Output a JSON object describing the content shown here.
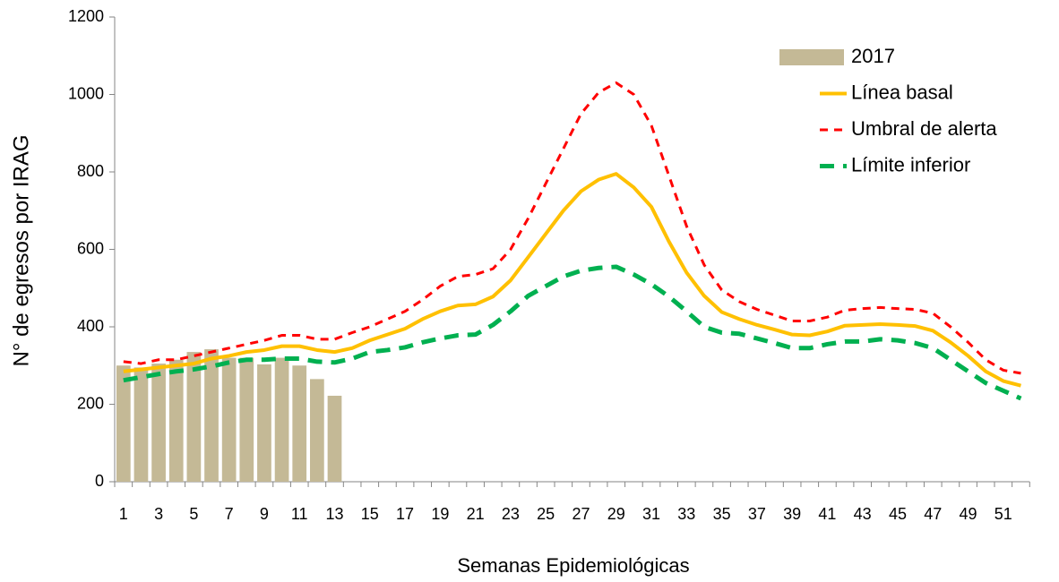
{
  "chart_data": {
    "type": "bar_line",
    "x_label": "Semanas Epidemiológicas",
    "y_label": "N° de egresos por IRAG",
    "categories": [
      "1",
      null,
      "3",
      null,
      "5",
      null,
      "7",
      null,
      "9",
      null,
      "11",
      null,
      "13",
      null,
      "15",
      null,
      "17",
      null,
      "19",
      null,
      "21",
      null,
      "23",
      null,
      "25",
      null,
      "27",
      null,
      "29",
      null,
      "31",
      null,
      "33",
      null,
      "35",
      null,
      "37",
      null,
      "39",
      null,
      "41",
      null,
      "43",
      null,
      "45",
      null,
      "47",
      null,
      "49",
      null,
      "51",
      null
    ],
    "ylim": [
      0,
      1200
    ],
    "yticks": [
      0,
      200,
      400,
      600,
      800,
      1000,
      1200
    ],
    "grid": false,
    "legend": "upper right",
    "series": [
      {
        "name": "2017",
        "kind": "bar",
        "color": "#c4b996",
        "values": [
          300,
          295,
          305,
          315,
          335,
          342,
          320,
          320,
          303,
          320,
          300,
          265,
          222,
          null,
          null,
          null,
          null,
          null,
          null,
          null,
          null,
          null,
          null,
          null,
          null,
          null,
          null,
          null,
          null,
          null,
          null,
          null,
          null,
          null,
          null,
          null,
          null,
          null,
          null,
          null,
          null,
          null,
          null,
          null,
          null,
          null,
          null,
          null,
          null,
          null,
          null,
          null
        ]
      },
      {
        "name": "Línea basal",
        "kind": "line",
        "color": "#ffc000",
        "dash": "none",
        "width": 4,
        "values": [
          285,
          290,
          295,
          300,
          305,
          318,
          325,
          335,
          340,
          350,
          350,
          340,
          335,
          345,
          365,
          380,
          395,
          420,
          440,
          455,
          458,
          478,
          520,
          580,
          640,
          700,
          750,
          780,
          795,
          760,
          710,
          620,
          540,
          480,
          438,
          420,
          405,
          393,
          380,
          378,
          388,
          403,
          405,
          407,
          405,
          402,
          390,
          360,
          325,
          285,
          260,
          248
        ]
      },
      {
        "name": "Umbral de alerta",
        "kind": "line",
        "color": "#ff0000",
        "dash": "9 7",
        "width": 3,
        "values": [
          310,
          305,
          315,
          315,
          325,
          335,
          345,
          355,
          365,
          378,
          378,
          368,
          368,
          385,
          400,
          420,
          440,
          470,
          505,
          530,
          535,
          550,
          600,
          680,
          770,
          860,
          950,
          1005,
          1030,
          1000,
          920,
          790,
          660,
          560,
          495,
          465,
          445,
          430,
          415,
          415,
          425,
          443,
          447,
          450,
          447,
          445,
          435,
          400,
          360,
          315,
          288,
          280
        ]
      },
      {
        "name": "Límite inferior",
        "kind": "line",
        "color": "#00b050",
        "dash": "16 10",
        "width": 5,
        "values": [
          262,
          270,
          278,
          285,
          290,
          298,
          308,
          315,
          315,
          318,
          318,
          310,
          308,
          318,
          335,
          340,
          347,
          360,
          370,
          378,
          380,
          405,
          440,
          480,
          505,
          530,
          545,
          552,
          555,
          535,
          510,
          478,
          440,
          400,
          385,
          382,
          370,
          358,
          345,
          345,
          355,
          362,
          362,
          368,
          365,
          358,
          345,
          315,
          285,
          255,
          235,
          215
        ]
      }
    ]
  }
}
